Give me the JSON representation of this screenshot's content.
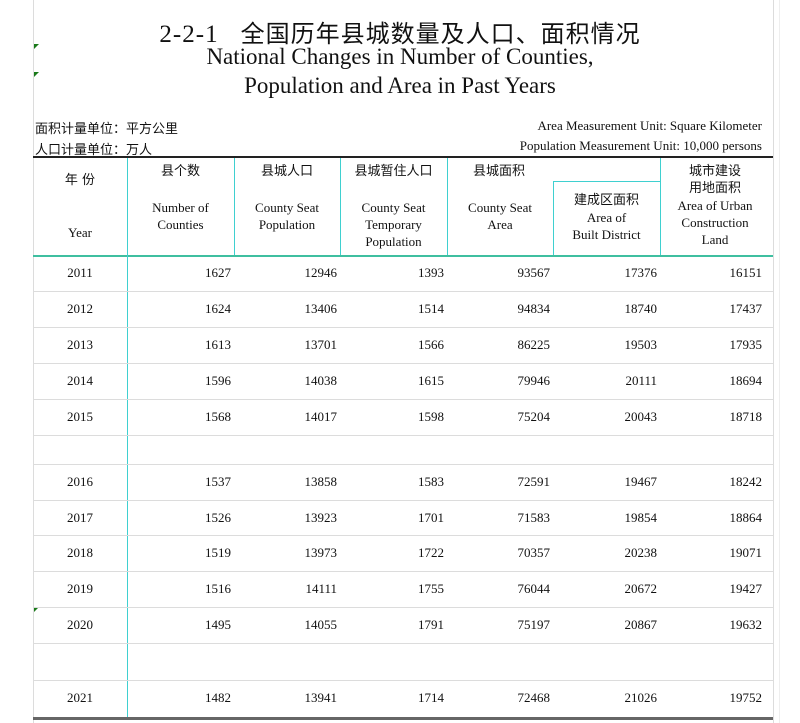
{
  "title": {
    "number": "2-2-1",
    "cn": "全国历年县城数量及人口、面积情况",
    "en_line1": "National Changes in Number of Counties,",
    "en_line2": "Population and Area in Past Years"
  },
  "units": {
    "area_cn": "面积计量单位：平方公里",
    "population_cn": "人口计量单位：万人",
    "area_en": "Area Measurement Unit: Square Kilometer",
    "population_en": "Population Measurement Unit: 10,000 persons"
  },
  "columns": [
    {
      "cn": "年 份",
      "en": "Year"
    },
    {
      "cn": "县个数",
      "en_1": "Number of",
      "en_2": "Counties"
    },
    {
      "cn": "县城人口",
      "en_1": "County Seat",
      "en_2": "Population"
    },
    {
      "cn": "县城暂住人口",
      "en_1": "County Seat",
      "en_2": "Temporary",
      "en_3": "Population"
    },
    {
      "cn": "县城面积",
      "en_1": "County Seat",
      "en_2": "Area"
    },
    {
      "cn": "建成区面积",
      "en_1": "Area of",
      "en_2": "Built District"
    },
    {
      "cn_1": "城市建设",
      "cn_2": "用地面积",
      "en_1": "Area of Urban",
      "en_2": "Construction",
      "en_3": "Land"
    }
  ],
  "rows": [
    {
      "year": "2011",
      "values": [
        "1627",
        "12946",
        "1393",
        "93567",
        "17376",
        "16151"
      ]
    },
    {
      "year": "2012",
      "values": [
        "1624",
        "13406",
        "1514",
        "94834",
        "18740",
        "17437"
      ]
    },
    {
      "year": "2013",
      "values": [
        "1613",
        "13701",
        "1566",
        "86225",
        "19503",
        "17935"
      ]
    },
    {
      "year": "2014",
      "values": [
        "1596",
        "14038",
        "1615",
        "79946",
        "20111",
        "18694"
      ]
    },
    {
      "year": "2015",
      "values": [
        "1568",
        "14017",
        "1598",
        "75204",
        "20043",
        "18718"
      ]
    },
    {
      "year": "2016",
      "values": [
        "1537",
        "13858",
        "1583",
        "72591",
        "19467",
        "18242"
      ]
    },
    {
      "year": "2017",
      "values": [
        "1526",
        "13923",
        "1701",
        "71583",
        "19854",
        "18864"
      ]
    },
    {
      "year": "2018",
      "values": [
        "1519",
        "13973",
        "1722",
        "70357",
        "20238",
        "19071"
      ]
    },
    {
      "year": "2019",
      "values": [
        "1516",
        "14111",
        "1755",
        "76044",
        "20672",
        "19427"
      ]
    },
    {
      "year": "2020",
      "values": [
        "1495",
        "14055",
        "1791",
        "75197",
        "20867",
        "19632"
      ]
    },
    {
      "year": "2021",
      "values": [
        "1482",
        "13941",
        "1714",
        "72468",
        "21026",
        "19752"
      ]
    }
  ]
}
